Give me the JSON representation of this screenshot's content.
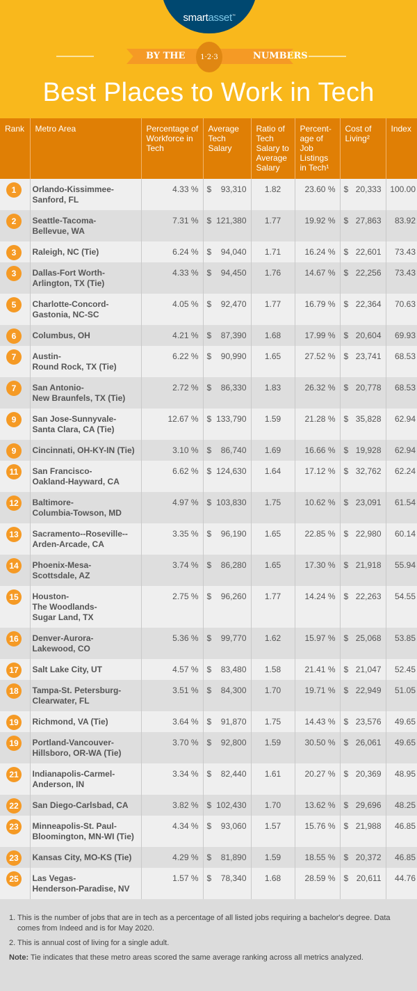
{
  "brand": {
    "logo_a": "smart",
    "logo_b": "asset",
    "logo_tm": "™"
  },
  "banner": {
    "left": "BY THE",
    "badge": "1·2·3",
    "right": "NUMBERS"
  },
  "title": "Best Places to Work in Tech",
  "colors": {
    "yellow": "#f9b81c",
    "orange": "#e07f05",
    "badge": "#f59a25",
    "navy": "#004870"
  },
  "columns": [
    "Rank",
    "Metro Area",
    "Percentage of Workforce in Tech",
    "Average Tech Salary",
    "Ratio of Tech Salary to Average Salary",
    "Percent-age of Job Listings in Tech¹",
    "Cost of Living²",
    "Index"
  ],
  "rows": [
    {
      "rank": "1",
      "metro": "Orlando-Kissimmee-\nSanford, FL",
      "pct": "4.33 %",
      "salary": "93,310",
      "ratio": "1.82",
      "jobs": "23.60 %",
      "col": "20,333",
      "index": "100.00"
    },
    {
      "rank": "2",
      "metro": "Seattle-Tacoma-\nBellevue, WA",
      "pct": "7.31 %",
      "salary": "121,380",
      "ratio": "1.77",
      "jobs": "19.92 %",
      "col": "27,863",
      "index": "83.92"
    },
    {
      "rank": "3",
      "metro": "Raleigh, NC (Tie)",
      "pct": "6.24 %",
      "salary": "94,040",
      "ratio": "1.71",
      "jobs": "16.24 %",
      "col": "22,601",
      "index": "73.43"
    },
    {
      "rank": "3",
      "metro": "Dallas-Fort Worth-\nArlington, TX (Tie)",
      "pct": "4.33 %",
      "salary": "94,450",
      "ratio": "1.76",
      "jobs": "14.67 %",
      "col": "22,256",
      "index": "73.43"
    },
    {
      "rank": "5",
      "metro": "Charlotte-Concord-\nGastonia, NC-SC",
      "pct": "4.05 %",
      "salary": "92,470",
      "ratio": "1.77",
      "jobs": "16.79 %",
      "col": "22,364",
      "index": "70.63"
    },
    {
      "rank": "6",
      "metro": "Columbus, OH",
      "pct": "4.21 %",
      "salary": "87,390",
      "ratio": "1.68",
      "jobs": "17.99 %",
      "col": "20,604",
      "index": "69.93"
    },
    {
      "rank": "7",
      "metro": "Austin-\nRound Rock, TX (Tie)",
      "pct": "6.22 %",
      "salary": "90,990",
      "ratio": "1.65",
      "jobs": "27.52 %",
      "col": "23,741",
      "index": "68.53"
    },
    {
      "rank": "7",
      "metro": "San Antonio-\nNew Braunfels, TX (Tie)",
      "pct": "2.72 %",
      "salary": "86,330",
      "ratio": "1.83",
      "jobs": "26.32 %",
      "col": "20,778",
      "index": "68.53"
    },
    {
      "rank": "9",
      "metro": "San Jose-Sunnyvale-\nSanta Clara, CA (Tie)",
      "pct": "12.67 %",
      "salary": "133,790",
      "ratio": "1.59",
      "jobs": "21.28 %",
      "col": "35,828",
      "index": "62.94"
    },
    {
      "rank": "9",
      "metro": "Cincinnati, OH-KY-IN (Tie)",
      "pct": "3.10 %",
      "salary": "86,740",
      "ratio": "1.69",
      "jobs": "16.66 %",
      "col": "19,928",
      "index": "62.94"
    },
    {
      "rank": "11",
      "metro": "San Francisco-\nOakland-Hayward, CA",
      "pct": "6.62 %",
      "salary": "124,630",
      "ratio": "1.64",
      "jobs": "17.12 %",
      "col": "32,762",
      "index": "62.24"
    },
    {
      "rank": "12",
      "metro": "Baltimore-\nColumbia-Towson, MD",
      "pct": "4.97 %",
      "salary": "103,830",
      "ratio": "1.75",
      "jobs": "10.62 %",
      "col": "23,091",
      "index": "61.54"
    },
    {
      "rank": "13",
      "metro": "Sacramento--Roseville--\nArden-Arcade, CA",
      "pct": "3.35 %",
      "salary": "96,190",
      "ratio": "1.65",
      "jobs": "22.85 %",
      "col": "22,980",
      "index": "60.14"
    },
    {
      "rank": "14",
      "metro": "Phoenix-Mesa-\nScottsdale, AZ",
      "pct": "3.74 %",
      "salary": "86,280",
      "ratio": "1.65",
      "jobs": "17.30 %",
      "col": "21,918",
      "index": "55.94"
    },
    {
      "rank": "15",
      "metro": "Houston-\nThe Woodlands-\nSugar Land, TX",
      "pct": "2.75 %",
      "salary": "96,260",
      "ratio": "1.77",
      "jobs": "14.24 %",
      "col": "22,263",
      "index": "54.55"
    },
    {
      "rank": "16",
      "metro": "Denver-Aurora-\nLakewood, CO",
      "pct": "5.36 %",
      "salary": "99,770",
      "ratio": "1.62",
      "jobs": "15.97 %",
      "col": "25,068",
      "index": "53.85"
    },
    {
      "rank": "17",
      "metro": "Salt Lake City, UT",
      "pct": "4.57 %",
      "salary": "83,480",
      "ratio": "1.58",
      "jobs": "21.41 %",
      "col": "21,047",
      "index": "52.45"
    },
    {
      "rank": "18",
      "metro": "Tampa-St. Petersburg-\nClearwater, FL",
      "pct": "3.51 %",
      "salary": "84,300",
      "ratio": "1.70",
      "jobs": "19.71 %",
      "col": "22,949",
      "index": "51.05"
    },
    {
      "rank": "19",
      "metro": "Richmond, VA (Tie)",
      "pct": "3.64 %",
      "salary": "91,870",
      "ratio": "1.75",
      "jobs": "14.43 %",
      "col": "23,576",
      "index": "49.65"
    },
    {
      "rank": "19",
      "metro": "Portland-Vancouver-\nHillsboro, OR-WA (Tie)",
      "pct": "3.70 %",
      "salary": "92,800",
      "ratio": "1.59",
      "jobs": "30.50 %",
      "col": "26,061",
      "index": "49.65"
    },
    {
      "rank": "21",
      "metro": "Indianapolis-Carmel-\nAnderson, IN",
      "pct": "3.34 %",
      "salary": "82,440",
      "ratio": "1.61",
      "jobs": "20.27 %",
      "col": "20,369",
      "index": "48.95"
    },
    {
      "rank": "22",
      "metro": "San Diego-Carlsbad, CA",
      "pct": "3.82 %",
      "salary": "102,430",
      "ratio": "1.70",
      "jobs": "13.62 %",
      "col": "29,696",
      "index": "48.25"
    },
    {
      "rank": "23",
      "metro": "Minneapolis-St. Paul-\nBloomington, MN-WI (Tie)",
      "pct": "4.34 %",
      "salary": "93,060",
      "ratio": "1.57",
      "jobs": "15.76 %",
      "col": "21,988",
      "index": "46.85"
    },
    {
      "rank": "23",
      "metro": "Kansas City, MO-KS (Tie)",
      "pct": "4.29 %",
      "salary": "81,890",
      "ratio": "1.59",
      "jobs": "18.55 %",
      "col": "20,372",
      "index": "46.85"
    },
    {
      "rank": "25",
      "metro": "Las Vegas-\nHenderson-Paradise, NV",
      "pct": "1.57 %",
      "salary": "78,340",
      "ratio": "1.68",
      "jobs": "28.59 %",
      "col": "20,611",
      "index": "44.76"
    }
  ],
  "currency": "$",
  "footnotes": {
    "n1_mark": "1.",
    "n1": "This is the number of jobs that are in tech as a percentage of all listed jobs requiring a bachelor's degree. Data comes from Indeed and is for May 2020.",
    "n2_mark": "2.",
    "n2": "This is annual cost of living for a single adult.",
    "note_label": "Note:",
    "note": " Tie indicates that these metro areas scored the same average ranking across all metrics analyzed."
  }
}
